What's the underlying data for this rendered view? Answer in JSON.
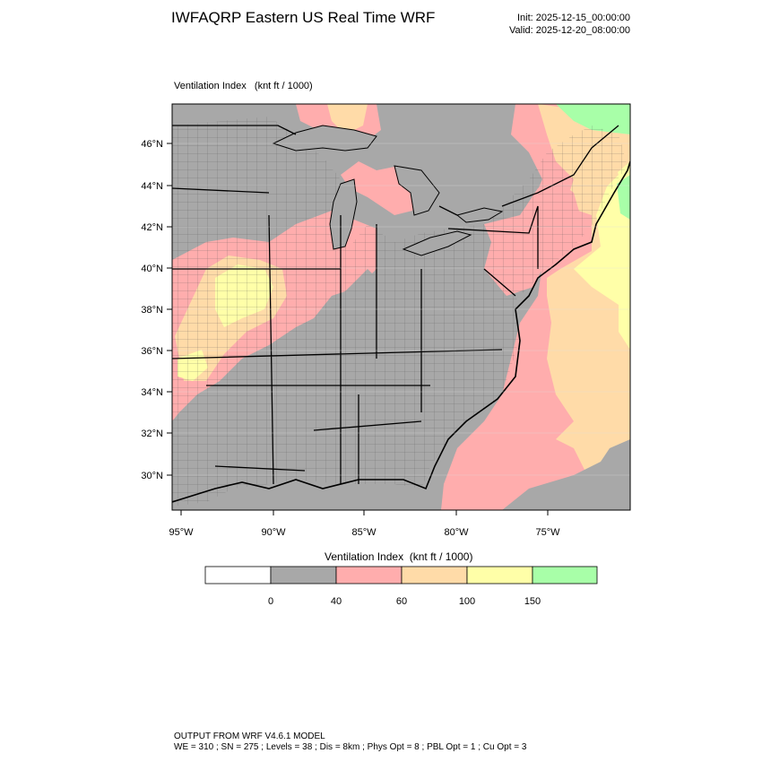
{
  "header": {
    "title": "IWFAQRP Eastern US Real Time WRF",
    "init": "Init: 2025-12-15_00:00:00",
    "valid": "Valid: 2025-12-20_08:00:00"
  },
  "plot": {
    "variable_label": "Ventilation Index",
    "units_label": "(knt ft / 1000)",
    "lat_ticks": [
      "46°N",
      "44°N",
      "42°N",
      "40°N",
      "38°N",
      "36°N",
      "34°N",
      "32°N",
      "30°N"
    ],
    "lon_ticks": [
      "95°W",
      "90°W",
      "85°W",
      "80°W",
      "75°W"
    ]
  },
  "legend": {
    "title": "Ventilation Index  (knt ft / 1000)",
    "bins": [
      {
        "color": "#ffffff",
        "label": "< 0"
      },
      {
        "color": "#a8a8a8",
        "label": "0 - 40"
      },
      {
        "color": "#ffadad",
        "label": "40 - 60"
      },
      {
        "color": "#ffdba8",
        "label": "60 - 100"
      },
      {
        "color": "#ffffa8",
        "label": "100 - 150"
      },
      {
        "color": "#a8ffa8",
        "label": "> 150"
      }
    ],
    "tick_labels": [
      "0",
      "40",
      "60",
      "100",
      "150"
    ]
  },
  "footer": {
    "line1": "OUTPUT FROM WRF V4.6.1 MODEL",
    "line2": "WE = 310 ; SN = 275 ; Levels = 38 ; Dis = 8km ; Phys Opt = 8 ; PBL Opt = 1 ; Cu Opt = 3"
  }
}
